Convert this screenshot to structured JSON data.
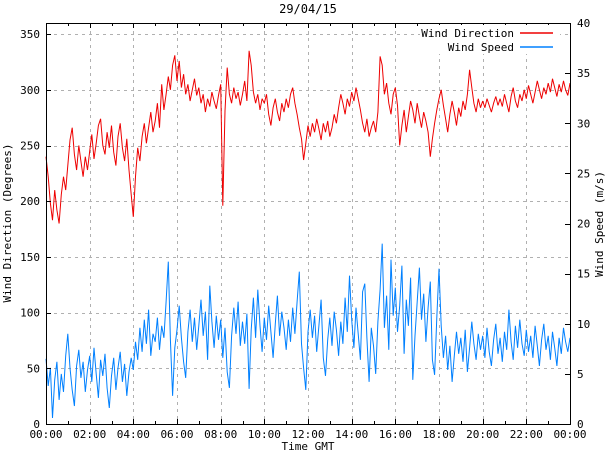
{
  "chart_data": {
    "type": "line",
    "title": "29/04/15",
    "xlabel": "Time GMT",
    "ylabel": "Wind Direction (Degrees)",
    "y2label": "Wind Speed (m/s)",
    "grid": true,
    "legend_position": "top-right",
    "x_range_hours": [
      0,
      24
    ],
    "x_tick_labels": [
      "00:00",
      "02:00",
      "04:00",
      "06:00",
      "08:00",
      "10:00",
      "12:00",
      "14:00",
      "16:00",
      "18:00",
      "20:00",
      "22:00",
      "00:00"
    ],
    "x_major_step_hours": 2,
    "x_minor_step_hours": 1,
    "y1": {
      "range": [
        0,
        360
      ],
      "ticks": [
        0,
        50,
        100,
        150,
        200,
        250,
        300,
        350
      ]
    },
    "y2": {
      "range": [
        0,
        40
      ],
      "ticks": [
        0,
        5,
        10,
        15,
        20,
        25,
        30,
        35,
        40
      ]
    },
    "colors": {
      "grid": "#b0b0b0",
      "border": "#000000",
      "wind_direction": "#ee0000",
      "wind_speed": "#0080ff"
    },
    "series": [
      {
        "name": "Wind Direction",
        "axis": "y1",
        "color": "#ee0000",
        "units": "degrees",
        "x_start": 0,
        "x_step": 0.1,
        "values": [
          240,
          222,
          198,
          183,
          210,
          192,
          180,
          206,
          222,
          210,
          232,
          255,
          266,
          242,
          228,
          250,
          236,
          222,
          240,
          228,
          245,
          260,
          238,
          252,
          268,
          274,
          250,
          242,
          262,
          248,
          268,
          244,
          232,
          258,
          270,
          248,
          236,
          256,
          228,
          206,
          186,
          222,
          248,
          236,
          258,
          270,
          252,
          266,
          280,
          262,
          272,
          288,
          266,
          305,
          282,
          296,
          312,
          300,
          322,
          331,
          308,
          326,
          302,
          314,
          296,
          305,
          290,
          300,
          310,
          295,
          302,
          288,
          296,
          280,
          292,
          285,
          298,
          290,
          283,
          295,
          305,
          196,
          281,
          320,
          296,
          288,
          302,
          292,
          298,
          286,
          296,
          308,
          290,
          335,
          322,
          298,
          288,
          296,
          282,
          292,
          288,
          296,
          278,
          268,
          284,
          292,
          280,
          272,
          288,
          280,
          292,
          284,
          296,
          302,
          288,
          278,
          266,
          256,
          237,
          252,
          268,
          258,
          270,
          262,
          274,
          265,
          255,
          270,
          262,
          272,
          258,
          266,
          278,
          270,
          284,
          296,
          288,
          278,
          292,
          285,
          298,
          290,
          302,
          292,
          282,
          270,
          262,
          274,
          258,
          266,
          272,
          262,
          280,
          330,
          322,
          296,
          306,
          288,
          278,
          296,
          302,
          286,
          250,
          268,
          282,
          262,
          276,
          290,
          282,
          270,
          288,
          276,
          266,
          280,
          272,
          262,
          240,
          256,
          270,
          282,
          292,
          300,
          286,
          274,
          262,
          278,
          290,
          280,
          268,
          284,
          276,
          290,
          282,
          296,
          318,
          302,
          288,
          280,
          292,
          284,
          290,
          284,
          292,
          286,
          280,
          288,
          294,
          286,
          292,
          285,
          296,
          288,
          280,
          294,
          302,
          290,
          284,
          296,
          290,
          300,
          292,
          304,
          296,
          288,
          298,
          308,
          300,
          292,
          302,
          296,
          306,
          298,
          310,
          302,
          294,
          305,
          298,
          308,
          300,
          295,
          306
        ]
      },
      {
        "name": "Wind Speed",
        "axis": "y2",
        "color": "#0080ff",
        "units": "m/s",
        "x_start": 0,
        "x_step": 0.1,
        "values": [
          6.5,
          3.8,
          5.6,
          0.6,
          4.4,
          6.2,
          2.4,
          5.0,
          3.2,
          6.8,
          9.0,
          5.6,
          3.4,
          1.8,
          5.8,
          7.4,
          4.6,
          6.2,
          3.2,
          5.4,
          6.8,
          4.2,
          7.6,
          5.0,
          2.6,
          6.4,
          4.8,
          7.0,
          3.6,
          1.6,
          4.8,
          6.6,
          3.4,
          5.6,
          7.2,
          4.2,
          6.0,
          2.8,
          5.2,
          6.6,
          5.4,
          8.2,
          6.4,
          9.6,
          7.2,
          10.4,
          8.0,
          11.4,
          6.8,
          9.0,
          8.2,
          10.6,
          7.4,
          9.8,
          8.6,
          12.2,
          16.2,
          8.4,
          2.8,
          7.6,
          9.4,
          11.8,
          8.6,
          6.2,
          4.6,
          9.2,
          11.4,
          8.2,
          10.6,
          7.4,
          9.8,
          12.4,
          8.8,
          11.2,
          6.4,
          13.8,
          10.2,
          7.6,
          10.8,
          8.4,
          10.4,
          6.6,
          9.6,
          5.2,
          3.6,
          8.8,
          11.6,
          9.0,
          12.2,
          7.8,
          10.2,
          8.0,
          11.0,
          3.5,
          9.4,
          12.6,
          8.6,
          13.4,
          9.8,
          7.2,
          10.6,
          8.4,
          11.8,
          9.2,
          6.6,
          10.0,
          12.8,
          8.8,
          11.2,
          9.6,
          7.4,
          10.4,
          8.2,
          11.6,
          9.0,
          12.2,
          15.2,
          8.0,
          5.6,
          3.4,
          9.2,
          11.4,
          8.6,
          10.8,
          7.2,
          9.8,
          12.4,
          6.6,
          4.8,
          8.4,
          10.6,
          7.8,
          11.2,
          9.4,
          6.8,
          10.2,
          8.0,
          12.6,
          9.2,
          14.8,
          10.4,
          7.6,
          11.6,
          9.0,
          6.4,
          13.2,
          14.0,
          8.6,
          4.2,
          9.6,
          7.8,
          5.0,
          10.2,
          13.4,
          18.0,
          9.6,
          12.8,
          7.4,
          16.4,
          10.8,
          13.6,
          9.2,
          11.8,
          15.8,
          7.0,
          12.4,
          9.8,
          14.6,
          4.4,
          8.8,
          12.2,
          15.6,
          10.4,
          13.0,
          8.2,
          11.6,
          14.2,
          6.4,
          4.9,
          10.6,
          15.5,
          9.8,
          6.6,
          8.8,
          5.4,
          7.8,
          4.2,
          6.8,
          9.2,
          7.0,
          8.6,
          6.2,
          9.4,
          5.2,
          7.6,
          10.2,
          8.0,
          6.4,
          9.0,
          7.4,
          8.8,
          6.6,
          9.6,
          7.2,
          5.8,
          8.4,
          10.0,
          7.0,
          8.6,
          6.2,
          9.2,
          7.4,
          11.4,
          8.2,
          6.4,
          9.8,
          7.6,
          10.4,
          8.0,
          6.8,
          9.4,
          7.2,
          8.8,
          6.6,
          9.8,
          7.8,
          5.8,
          8.4,
          10.0,
          7.4,
          8.8,
          6.4,
          9.2,
          7.6,
          5.8,
          8.6,
          7.0,
          9.6,
          8.2,
          7.2,
          8.6
        ]
      }
    ]
  }
}
